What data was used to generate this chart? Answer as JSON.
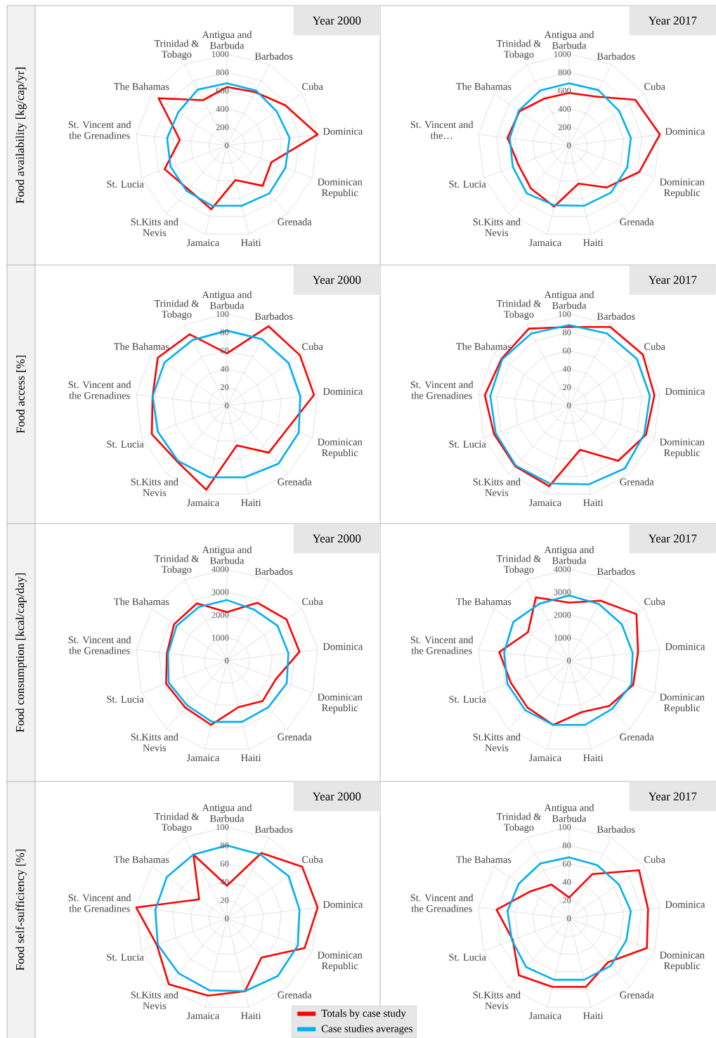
{
  "chart_data": [
    {
      "type": "radar",
      "title": "Year 2000",
      "ylabel": "Food availability  [kg/cap/yr]",
      "categories": [
        "Antigua and Barbuda",
        "Barbados",
        "Cuba",
        "Dominica",
        "Dominican Republic",
        "Grenada",
        "Haiti",
        "Jamaica",
        "St.Kitts and Nevis",
        "St. Lucia",
        "St. Vincent and the Grenadines",
        "The Bahamas",
        "Trinidad & Tobago"
      ],
      "ylim": [
        0,
        1000
      ],
      "yticks": [
        0,
        200,
        400,
        600,
        800,
        1000
      ],
      "grid": true,
      "series": [
        {
          "color": "#ff0000",
          "values": [
            640,
            660,
            775,
            1000,
            520,
            590,
            390,
            720,
            640,
            730,
            520,
            910,
            560
          ]
        },
        {
          "color": "#00b0f0",
          "values": [
            680,
            680,
            660,
            690,
            685,
            700,
            680,
            680,
            665,
            660,
            660,
            645,
            690
          ]
        }
      ]
    },
    {
      "type": "radar",
      "title": "Year 2017",
      "categories": [
        "Antigua and Barbuda",
        "Barbados",
        "Cuba",
        "Dominica",
        "Dominican Republic",
        "Grenada",
        "Haiti",
        "Jamaica",
        "St.Kitts and Nevis",
        "St. Lucia",
        "St. Vincent and the…",
        "The Bahamas",
        "Trinidad & Tobago"
      ],
      "ylim": [
        0,
        1000
      ],
      "yticks": [
        0,
        200,
        400,
        600,
        800,
        1000
      ],
      "grid": true,
      "series": [
        {
          "color": "#ff0000",
          "values": [
            575,
            605,
            880,
            1000,
            820,
            615,
            430,
            690,
            630,
            595,
            680,
            660,
            580
          ]
        },
        {
          "color": "#00b0f0",
          "values": [
            680,
            685,
            665,
            680,
            680,
            690,
            680,
            675,
            700,
            660,
            655,
            670,
            680
          ]
        }
      ]
    },
    {
      "type": "radar",
      "title": "Year 2000",
      "ylabel": "Food access [%]",
      "categories": [
        "Antigua and Barbuda",
        "Barbados",
        "Cuba",
        "Dominica",
        "Dominican Republic",
        "Grenada",
        "Haiti",
        "Jamaica",
        "St.Kitts and Nevis",
        "St. Lucia",
        "St. Vincent and the Grenadines",
        "The Bahamas",
        "Trinidad & Tobago"
      ],
      "ylim": [
        0,
        100
      ],
      "yticks": [
        0,
        20,
        40,
        60,
        80,
        100
      ],
      "grid": true,
      "series": [
        {
          "color": "#ff0000",
          "values": [
            57,
            98,
            97,
            96,
            71,
            69,
            45,
            95,
            82,
            88,
            82,
            92,
            88
          ]
        },
        {
          "color": "#00b0f0",
          "values": [
            82,
            82,
            82,
            81,
            84,
            85,
            81,
            81,
            81,
            81,
            82,
            83,
            81
          ]
        }
      ]
    },
    {
      "type": "radar",
      "title": "Year 2017",
      "categories": [
        "Antigua and Barbuda",
        "Barbados",
        "Cuba",
        "Dominica",
        "Dominican Republic",
        "Grenada",
        "Haiti",
        "Jamaica",
        "St.Kitts and Nevis",
        "St. Lucia",
        "St. Vincent and the Grenadines",
        "The Bahamas",
        "Trinidad & Tobago"
      ],
      "ylim": [
        0,
        100
      ],
      "yticks": [
        0,
        20,
        40,
        60,
        80,
        100
      ],
      "grid": true,
      "series": [
        {
          "color": "#ff0000",
          "values": [
            86,
            97,
            98,
            94,
            90,
            81,
            50,
            91,
            89,
            88,
            93,
            90,
            95
          ]
        },
        {
          "color": "#00b0f0",
          "values": [
            88,
            89,
            90,
            89,
            88,
            92,
            89,
            88,
            88,
            86,
            87,
            89,
            89
          ]
        }
      ]
    },
    {
      "type": "radar",
      "title": "Year 2000",
      "ylabel": "Food consumption  [kcal/cap/day]",
      "categories": [
        "Antigua and Barbuda",
        "Barbados",
        "Cuba",
        "Dominica",
        "Dominican Republic",
        "Grenada",
        "Haiti",
        "Jamaica",
        "St.Kitts and Nevis",
        "St. Lucia",
        "St. Vincent and the Grenadines",
        "The Bahamas",
        "Trinidad & Tobago"
      ],
      "ylim": [
        0,
        4000
      ],
      "yticks": [
        0,
        1000,
        2000,
        3000,
        4000
      ],
      "grid": true,
      "series": [
        {
          "color": "#ff0000",
          "values": [
            2120,
            2860,
            3170,
            3200,
            2290,
            2360,
            2100,
            2900,
            2750,
            2850,
            2650,
            2810,
            2830
          ]
        },
        {
          "color": "#00b0f0",
          "values": [
            2650,
            2530,
            2690,
            2710,
            2800,
            2730,
            2760,
            2760,
            2620,
            2730,
            2600,
            2680,
            2650
          ]
        }
      ]
    },
    {
      "type": "radar",
      "title": "Year 2017",
      "categories": [
        "Antigua and Barbuda",
        "Barbados",
        "Cuba",
        "Dominica",
        "Dominican Republic",
        "Grenada",
        "Haiti",
        "Jamaica",
        "St.Kitts and Nevis",
        "St. Lucia",
        "St. Vincent and the Grenadines",
        "The Bahamas",
        "Trinidad & Tobago"
      ],
      "ylim": [
        0,
        4000
      ],
      "yticks": [
        0,
        1000,
        2000,
        3000,
        4000
      ],
      "grid": true,
      "series": [
        {
          "color": "#ff0000",
          "values": [
            2540,
            2960,
            3580,
            3040,
            3000,
            2650,
            2320,
            2900,
            2750,
            2730,
            3080,
            2190,
            3130
          ]
        },
        {
          "color": "#00b0f0",
          "values": [
            2850,
            2800,
            2800,
            2800,
            2920,
            2830,
            2900,
            2900,
            2900,
            2890,
            2870,
            2970,
            2810
          ]
        }
      ]
    },
    {
      "type": "radar",
      "title": "Year 2000",
      "ylabel": "Food self-sufficiency  [%]",
      "categories": [
        "Antigua and Barbuda",
        "Barbados",
        "Cuba",
        "Dominica",
        "Dominican Republic",
        "Grenada",
        "Haiti",
        "Jamaica",
        "St.Kitts and Nevis",
        "St. Lucia",
        "St. Vincent and the Grenadines",
        "The Bahamas",
        "Trinidad & Tobago"
      ],
      "ylim": [
        0,
        100
      ],
      "yticks": [
        0,
        20,
        40,
        60,
        80,
        100
      ],
      "grid": true,
      "legend": "bottom right",
      "series": [
        {
          "name": "Totals by case study",
          "color": "#ff0000",
          "values": [
            36,
            81,
            100,
            100,
            91,
            57,
            82,
            87,
            96,
            82,
            100,
            37,
            79
          ]
        },
        {
          "name": "Case studies averages",
          "color": "#00b0f0",
          "values": [
            80,
            79,
            82,
            80,
            83,
            84,
            82,
            81,
            80,
            81,
            79,
            80,
            79
          ]
        }
      ]
    },
    {
      "type": "radar",
      "title": "Year 2017",
      "categories": [
        "Antigua and Barbuda",
        "Barbados",
        "Cuba",
        "Dominica",
        "Dominican Republic",
        "Grenada",
        "Haiti",
        "Jamaica",
        "St.Kitts and Nevis",
        "St. Lucia",
        "St. Vincent and the Grenadines",
        "The Bahamas",
        "Trinidad & Tobago"
      ],
      "ylim": [
        0,
        100
      ],
      "yticks": [
        0,
        20,
        40,
        60,
        80,
        100
      ],
      "grid": true,
      "series": [
        {
          "color": "#ff0000",
          "values": [
            23,
            55,
            93,
            87,
            91,
            64,
            77,
            77,
            83,
            66,
            80,
            52,
            42
          ]
        },
        {
          "color": "#00b0f0",
          "values": [
            67,
            66,
            66,
            68,
            67,
            69,
            69,
            69,
            71,
            67,
            68,
            67,
            68
          ]
        }
      ]
    }
  ]
}
